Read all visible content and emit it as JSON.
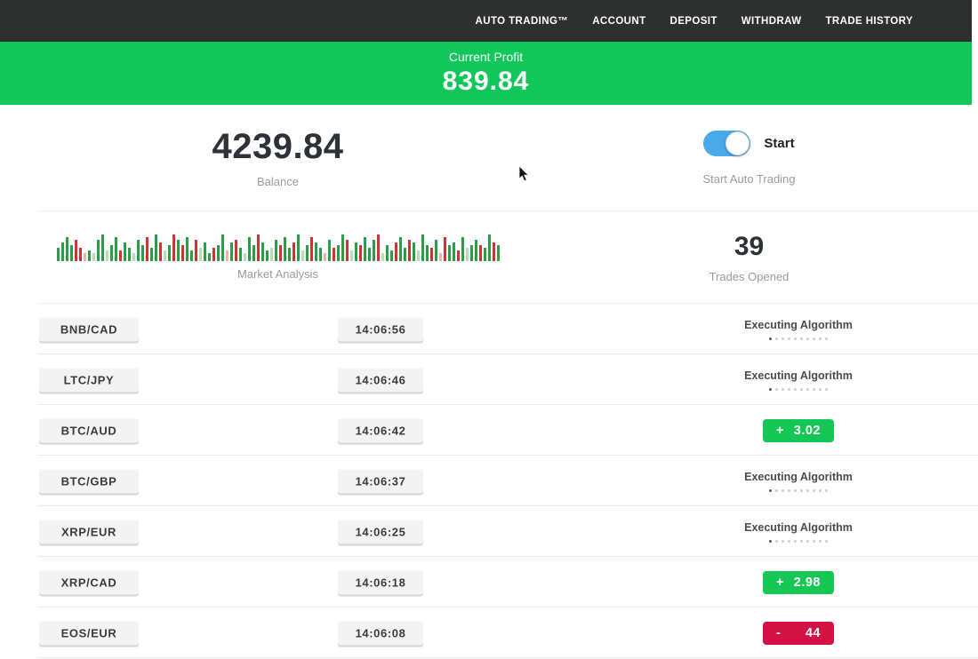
{
  "nav": {
    "items": [
      "AUTO TRADING™",
      "ACCOUNT",
      "DEPOSIT",
      "WITHDRAW",
      "TRADE HISTORY"
    ]
  },
  "banner": {
    "label": "Current Profit",
    "value": "839.84"
  },
  "summary": {
    "balance_value": "4239.84",
    "balance_label": "Balance",
    "toggle_state": "on",
    "toggle_label": "Start",
    "toggle_caption": "Start Auto Trading",
    "trades_value": "39",
    "trades_label": "Trades Opened",
    "chart_label": "Market Analysis"
  },
  "chart_data": {
    "type": "bar",
    "title": "Market Analysis",
    "note": "decorative market-pulse bar strip; tokens are color letter + relative height 1-10 (bar height = n x 3px)",
    "colors": {
      "g": "#2a9d45",
      "r": "#cf3434",
      "p": "#b7dcbc",
      "q": "#e7b3b3"
    },
    "bars": [
      "g5",
      "g7",
      "g9",
      "g6",
      "r8",
      "r5",
      "q3",
      "g4",
      "p3",
      "g8",
      "g10",
      "p4",
      "g6",
      "g9",
      "r4",
      "g7",
      "g5",
      "p3",
      "g8",
      "g6",
      "r9",
      "g5",
      "g10",
      "r7",
      "p4",
      "g6",
      "r10",
      "g8",
      "r6",
      "g9",
      "g4",
      "r8",
      "p5",
      "g7",
      "g3",
      "r5",
      "g6",
      "g10",
      "q4",
      "g7",
      "r8",
      "g5",
      "p3",
      "g9",
      "g6",
      "r10",
      "g7",
      "g4",
      "p5",
      "g8",
      "r6",
      "g9",
      "g5",
      "r7",
      "g10",
      "p4",
      "g6",
      "r9",
      "g7",
      "g5",
      "q3",
      "g8",
      "r5",
      "g6",
      "g10",
      "r8",
      "p4",
      "g7",
      "r6",
      "g9",
      "g5",
      "g8",
      "r10",
      "p3",
      "g6",
      "g4",
      "r7",
      "g9",
      "g5",
      "r8",
      "g7",
      "p4",
      "g10",
      "g6",
      "r5",
      "g8",
      "q3",
      "r9",
      "g6",
      "g7",
      "r4",
      "g9",
      "p5",
      "g6",
      "g8",
      "r6",
      "g5",
      "g10",
      "r7",
      "g6"
    ]
  },
  "trades": {
    "executing_label": "Executing Algorithm",
    "executing_dots": 10,
    "rows": [
      {
        "pair": "BNB/CAD",
        "time": "14:06:56",
        "status": "executing"
      },
      {
        "pair": "LTC/JPY",
        "time": "14:06:46",
        "status": "executing"
      },
      {
        "pair": "BTC/AUD",
        "time": "14:06:42",
        "status": "profit",
        "sign": "+",
        "amount": "3.02"
      },
      {
        "pair": "BTC/GBP",
        "time": "14:06:37",
        "status": "executing"
      },
      {
        "pair": "XRP/EUR",
        "time": "14:06:25",
        "status": "executing"
      },
      {
        "pair": "XRP/CAD",
        "time": "14:06:18",
        "status": "profit",
        "sign": "+",
        "amount": "2.98"
      },
      {
        "pair": "EOS/EUR",
        "time": "14:06:08",
        "status": "loss",
        "sign": "-",
        "amount": "44"
      }
    ]
  },
  "colors": {
    "nav_bg": "#2e302f",
    "accent_green": "#12c75a",
    "profit_green": "#14c654",
    "loss_red": "#d11243",
    "toggle_blue": "#4aa9e9"
  }
}
